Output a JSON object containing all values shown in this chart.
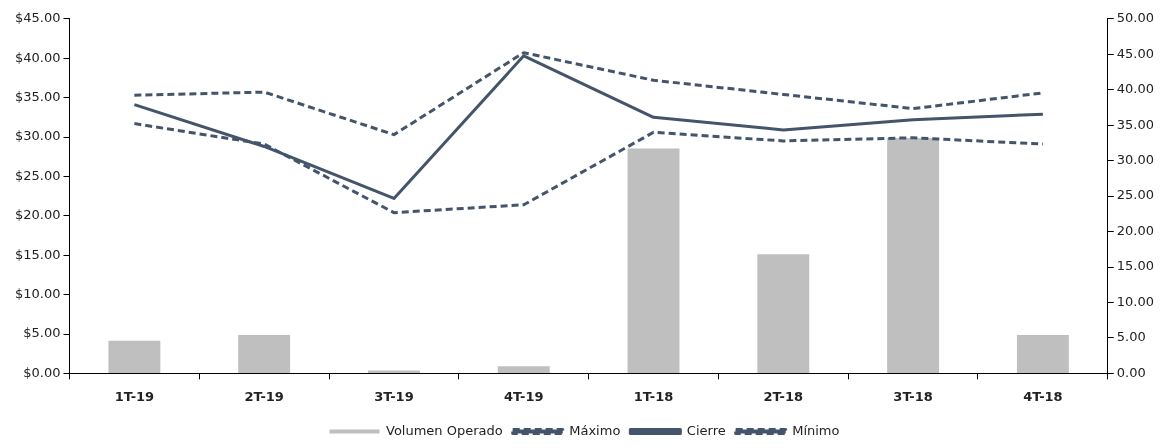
{
  "chart_data": {
    "type": "bar",
    "categories": [
      "1T-19",
      "2T-19",
      "3T-19",
      "4T-19",
      "1T-18",
      "2T-18",
      "3T-18",
      "4T-18"
    ],
    "series": [
      {
        "name": "Volumen Operado",
        "axis": "y2",
        "color": "#bfbfbf",
        "values": [
          4.6,
          5.4,
          0.4,
          1.0,
          31.7,
          16.8,
          33.2,
          5.4
        ]
      },
      {
        "name": "Máximo",
        "type": "line",
        "axis": "y",
        "color": "#44546a",
        "line_style": "dashed",
        "values": [
          35.3,
          35.7,
          30.3,
          40.7,
          37.2,
          35.4,
          33.6,
          35.6
        ]
      },
      {
        "name": "Cierre",
        "type": "line",
        "axis": "y",
        "color": "#44546a",
        "line_style": "solid",
        "values": [
          34.1,
          28.8,
          22.2,
          40.3,
          32.5,
          30.9,
          32.2,
          32.9
        ]
      },
      {
        "name": "Mínimo",
        "type": "line",
        "axis": "y",
        "color": "#44546a",
        "line_style": "dashed",
        "values": [
          31.7,
          29.1,
          20.4,
          21.4,
          30.6,
          29.5,
          29.9,
          29.1
        ]
      }
    ],
    "ylim": [
      0,
      45
    ],
    "yticks": [
      {
        "value": 0,
        "label": "$0.00"
      },
      {
        "value": 5,
        "label": "$5.00"
      },
      {
        "value": 10,
        "label": "$10.00"
      },
      {
        "value": 15,
        "label": "$15.00"
      },
      {
        "value": 20,
        "label": "$20.00"
      },
      {
        "value": 25,
        "label": "$25.00"
      },
      {
        "value": 30,
        "label": "$30.00"
      },
      {
        "value": 35,
        "label": "$35.00"
      },
      {
        "value": 40,
        "label": "$40.00"
      },
      {
        "value": 45,
        "label": "$45.00"
      }
    ],
    "y2lim": [
      0,
      50
    ],
    "y2ticks": [
      {
        "value": 0,
        "label": "0.00"
      },
      {
        "value": 5,
        "label": "5.00"
      },
      {
        "value": 10,
        "label": "10.00"
      },
      {
        "value": 15,
        "label": "15.00"
      },
      {
        "value": 20,
        "label": "20.00"
      },
      {
        "value": 25,
        "label": "25.00"
      },
      {
        "value": 30,
        "label": "30.00"
      },
      {
        "value": 35,
        "label": "35.00"
      },
      {
        "value": 40,
        "label": "40.00"
      },
      {
        "value": 45,
        "label": "45.00"
      },
      {
        "value": 50,
        "label": "50.00"
      }
    ],
    "grid": false,
    "legend": "bottom",
    "marker": "none"
  }
}
